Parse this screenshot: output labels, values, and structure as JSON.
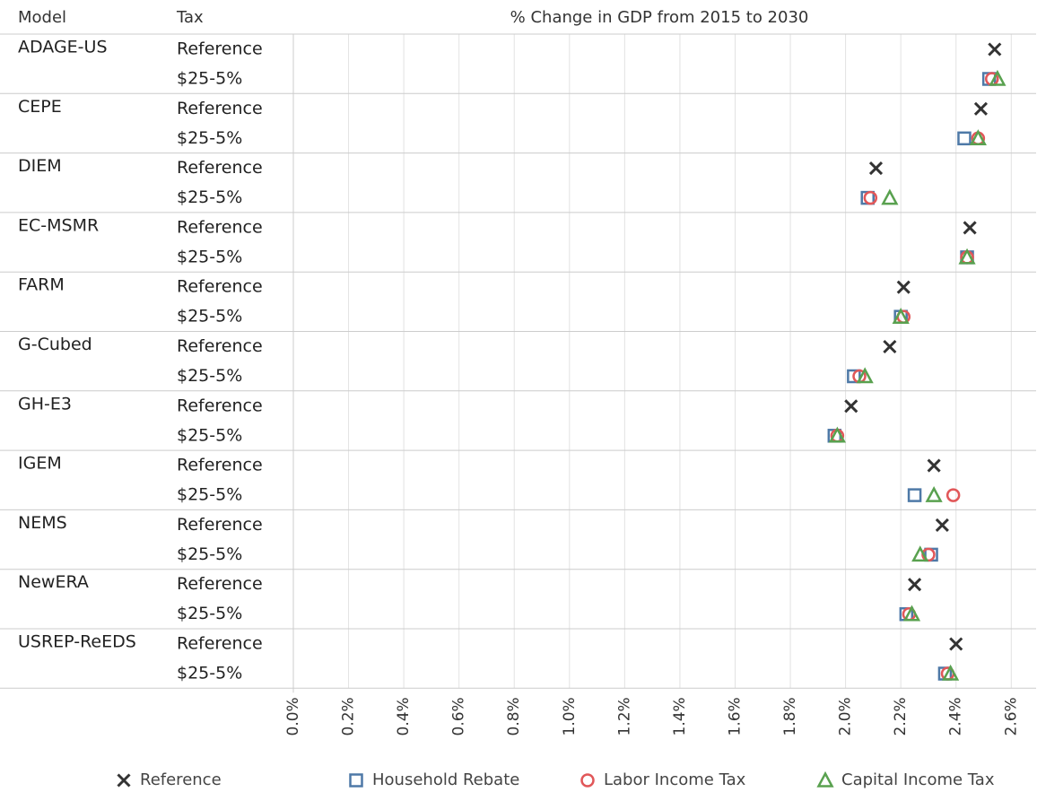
{
  "chart_data": {
    "type": "dot",
    "title": "% Change in GDP from 2015 to 2030",
    "column_headers": [
      "Model",
      "Tax"
    ],
    "categories": [
      "ADAGE-US",
      "CEPE",
      "DIEM",
      "EC-MSMR",
      "FARM",
      "G-Cubed",
      "GH-E3",
      "IGEM",
      "NEMS",
      "NewERA",
      "USREP-ReEDS"
    ],
    "tax_labels": [
      "Reference",
      "$25-5%"
    ],
    "series": [
      {
        "name": "Reference",
        "color": "#333333",
        "marker": "x",
        "values": [
          2.54,
          2.49,
          2.11,
          2.45,
          2.21,
          2.16,
          2.02,
          2.32,
          2.35,
          2.25,
          2.4
        ]
      },
      {
        "name": "Household Rebate",
        "color": "#4e79a7",
        "marker": "square",
        "values": [
          2.52,
          2.43,
          2.08,
          2.44,
          2.2,
          2.03,
          1.96,
          2.25,
          2.31,
          2.22,
          2.36
        ]
      },
      {
        "name": "Labor Income Tax",
        "color": "#e15759",
        "marker": "circle",
        "values": [
          2.53,
          2.48,
          2.09,
          2.44,
          2.21,
          2.05,
          1.97,
          2.39,
          2.3,
          2.23,
          2.37
        ]
      },
      {
        "name": "Capital Income Tax",
        "color": "#59a14f",
        "marker": "triangle",
        "values": [
          2.55,
          2.48,
          2.16,
          2.44,
          2.2,
          2.07,
          1.97,
          2.32,
          2.27,
          2.24,
          2.38
        ]
      }
    ],
    "xlim": [
      0,
      2.69
    ],
    "xticks": [
      {
        "value": 0,
        "label": "0.0%"
      },
      {
        "value": 0.2,
        "label": "0.2%"
      },
      {
        "value": 0.4,
        "label": "0.4%"
      },
      {
        "value": 0.6,
        "label": "0.6%"
      },
      {
        "value": 0.8,
        "label": "0.8%"
      },
      {
        "value": 1.0,
        "label": "1.0%"
      },
      {
        "value": 1.2,
        "label": "1.2%"
      },
      {
        "value": 1.4,
        "label": "1.4%"
      },
      {
        "value": 1.6,
        "label": "1.6%"
      },
      {
        "value": 1.8,
        "label": "1.8%"
      },
      {
        "value": 2.0,
        "label": "2.0%"
      },
      {
        "value": 2.2,
        "label": "2.2%"
      },
      {
        "value": 2.4,
        "label": "2.4%"
      },
      {
        "value": 2.6,
        "label": "2.6%"
      }
    ],
    "grid": true
  }
}
